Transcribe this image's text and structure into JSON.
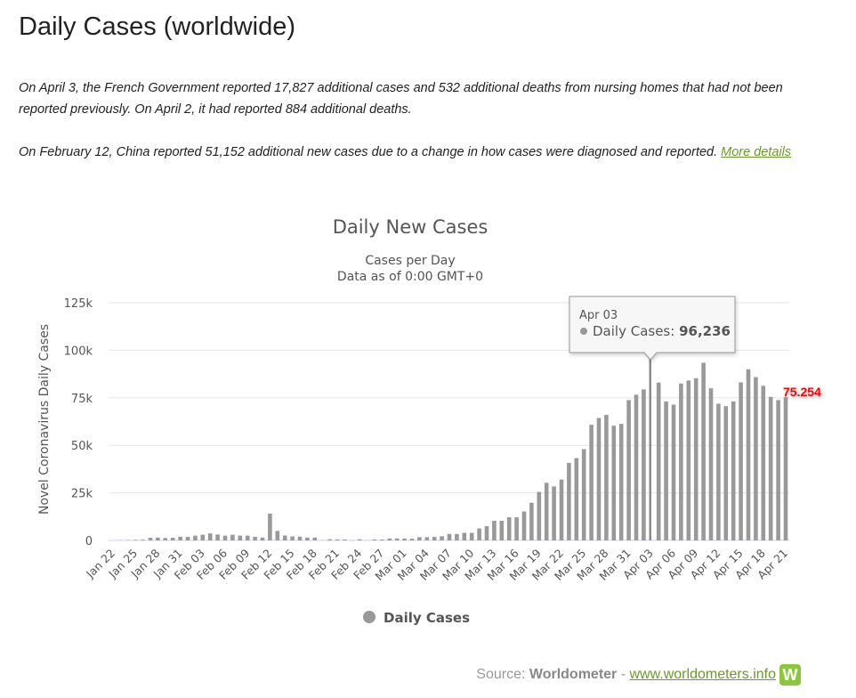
{
  "page_title": "Daily Cases (worldwide)",
  "notes": [
    {
      "text": "On April 3, the French Government reported 17,827 additional cases and 532 additional deaths from nursing homes that had not been reported previously. On April 2, it had reported 884 additional deaths."
    },
    {
      "text": "On February 12, China reported 51,152 additional new cases due to a change in how cases were diagnosed and reported. ",
      "link": "More details"
    }
  ],
  "chart_data": {
    "type": "bar",
    "title": "Daily New Cases",
    "subtitle_line1": "Cases per Day",
    "subtitle_line2": "Data as of 0:00 GMT+0",
    "ylabel": "Novel Coronavirus Daily Cases",
    "xlabel": "",
    "ylim": [
      0,
      125000
    ],
    "yticks": [
      "0",
      "25k",
      "50k",
      "75k",
      "100k",
      "125k"
    ],
    "grid": true,
    "legend_position": "bottom",
    "bar_color": "#999999",
    "categories": [
      "Jan 22",
      "Jan 23",
      "Jan 24",
      "Jan 25",
      "Jan 26",
      "Jan 27",
      "Jan 28",
      "Jan 29",
      "Jan 30",
      "Jan 31",
      "Feb 01",
      "Feb 02",
      "Feb 03",
      "Feb 04",
      "Feb 05",
      "Feb 06",
      "Feb 07",
      "Feb 08",
      "Feb 09",
      "Feb 10",
      "Feb 11",
      "Feb 12",
      "Feb 13",
      "Feb 14",
      "Feb 15",
      "Feb 16",
      "Feb 17",
      "Feb 18",
      "Feb 19",
      "Feb 20",
      "Feb 21",
      "Feb 22",
      "Feb 23",
      "Feb 24",
      "Feb 25",
      "Feb 26",
      "Feb 27",
      "Feb 28",
      "Feb 29",
      "Mar 01",
      "Mar 02",
      "Mar 03",
      "Mar 04",
      "Mar 05",
      "Mar 06",
      "Mar 07",
      "Mar 08",
      "Mar 09",
      "Mar 10",
      "Mar 11",
      "Mar 12",
      "Mar 13",
      "Mar 14",
      "Mar 15",
      "Mar 16",
      "Mar 17",
      "Mar 18",
      "Mar 19",
      "Mar 20",
      "Mar 21",
      "Mar 22",
      "Mar 23",
      "Mar 24",
      "Mar 25",
      "Mar 26",
      "Mar 27",
      "Mar 28",
      "Mar 29",
      "Mar 30",
      "Mar 31",
      "Apr 01",
      "Apr 02",
      "Apr 03",
      "Apr 04",
      "Apr 05",
      "Apr 06",
      "Apr 07",
      "Apr 08",
      "Apr 09",
      "Apr 10",
      "Apr 11",
      "Apr 12",
      "Apr 13",
      "Apr 14",
      "Apr 15",
      "Apr 16",
      "Apr 17",
      "Apr 18",
      "Apr 19",
      "Apr 20",
      "Apr 21"
    ],
    "series": [
      {
        "name": "Daily Cases",
        "values": [
          0,
          100,
          200,
          300,
          400,
          1400,
          1500,
          1300,
          1400,
          1900,
          1900,
          2500,
          3000,
          3700,
          3100,
          2500,
          3000,
          2500,
          2500,
          1900,
          1500,
          14100,
          5000,
          2600,
          2100,
          2000,
          1500,
          1500,
          100,
          600,
          500,
          500,
          100,
          600,
          100,
          500,
          500,
          1000,
          1000,
          1000,
          900,
          1700,
          1700,
          1900,
          2200,
          3400,
          3400,
          4000,
          4000,
          6300,
          7500,
          10300,
          10300,
          12200,
          12200,
          15200,
          19800,
          25500,
          30300,
          28400,
          32000,
          40800,
          43300,
          48000,
          60800,
          64400,
          66000,
          60300,
          61300,
          73800,
          76600,
          79400,
          96236,
          83000,
          73100,
          71400,
          82500,
          84100,
          85300,
          93400,
          80000,
          71900,
          70600,
          73100,
          83100,
          90000,
          85900,
          81300,
          75500,
          73800,
          75254
        ]
      }
    ],
    "tooltip": {
      "date": "Apr 03",
      "label": "Daily Cases: ",
      "value": "96,236"
    },
    "annotation": {
      "text": "75.254",
      "color": "#ff0000"
    }
  },
  "source": {
    "prefix": "Source: ",
    "name": "Worldometer",
    "sep": " - ",
    "link": "www.worldometers.info",
    "logo": "W"
  }
}
